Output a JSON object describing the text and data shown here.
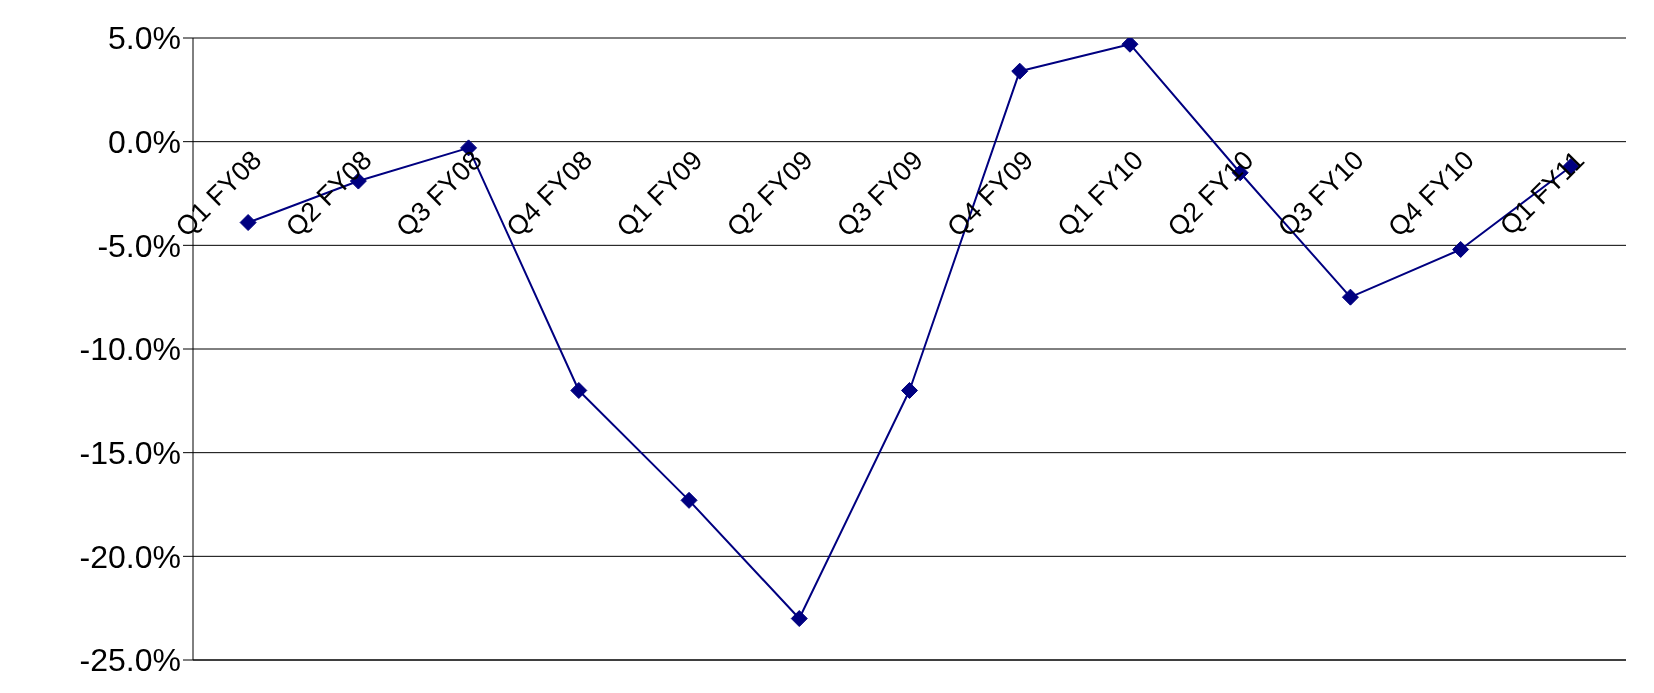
{
  "chart_data": {
    "type": "line",
    "categories": [
      "Q1 FY08",
      "Q2 FY08",
      "Q3 FY08",
      "Q4 FY08",
      "Q1 FY09",
      "Q2 FY09",
      "Q3 FY09",
      "Q4 FY09",
      "Q1 FY10",
      "Q2 FY10",
      "Q3 FY10",
      "Q4 FY10",
      "Q1 FY11"
    ],
    "series": [
      {
        "color": "#000080",
        "values": [
          -3.9,
          -1.9,
          -0.3,
          -12.0,
          -17.3,
          -23.0,
          -12.0,
          3.4,
          4.7,
          -1.5,
          -7.5,
          -5.2,
          -1.2
        ]
      }
    ],
    "ylim": [
      -25,
      5
    ],
    "yticks": [
      {
        "value": 5,
        "label": "5.0%"
      },
      {
        "value": 0,
        "label": "0.0%"
      },
      {
        "value": -5,
        "label": "-5.0%"
      },
      {
        "value": -10,
        "label": "-10.0%"
      },
      {
        "value": -15,
        "label": "-15.0%"
      },
      {
        "value": -20,
        "label": "-20.0%"
      },
      {
        "value": -25,
        "label": "-25.0%"
      }
    ],
    "grid": "y",
    "marker": "diamond",
    "line_style": "solid",
    "legend": false
  }
}
